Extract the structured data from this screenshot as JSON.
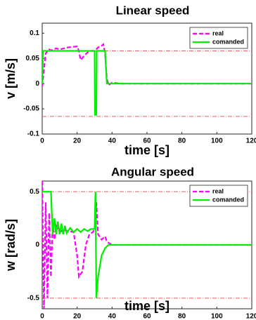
{
  "chart_data": [
    {
      "type": "line",
      "title": "Linear speed",
      "x_label": "time [s]",
      "y_label": "v [m/s]",
      "xlim": [
        0,
        120
      ],
      "xticks": [
        0,
        20,
        40,
        60,
        80,
        100,
        120
      ],
      "ylim": [
        -0.1,
        0.12
      ],
      "yticks": [
        -0.1,
        -0.05,
        0,
        0.05,
        0.1
      ],
      "hlines": [
        0.065,
        -0.065
      ],
      "hline_color": "#e06060",
      "legend": "upper right",
      "series": [
        {
          "name": "real",
          "color": "#ff00ff",
          "dash": true,
          "x": [
            0,
            2,
            4,
            5,
            8,
            10,
            15,
            20,
            21,
            22,
            24,
            26,
            28,
            30,
            31,
            32,
            34,
            35,
            36,
            37,
            38,
            40,
            45,
            120
          ],
          "values": [
            -0.005,
            0.06,
            0.068,
            0.066,
            0.07,
            0.068,
            0.072,
            0.074,
            0.065,
            0.047,
            0.055,
            0.062,
            0.065,
            0.065,
            0.068,
            0.072,
            0.075,
            0.078,
            0.06,
            0.01,
            -0.003,
            0.002,
            0,
            0
          ]
        },
        {
          "name": "comanded",
          "color": "#00ee00",
          "dash": false,
          "x": [
            0,
            0.5,
            30,
            30.2,
            31,
            31.2,
            36,
            37,
            120
          ],
          "values": [
            0,
            0.065,
            0.065,
            -0.062,
            -0.062,
            0.065,
            0.065,
            0,
            0
          ]
        }
      ]
    },
    {
      "type": "line",
      "title": "Angular speed",
      "x_label": "time [s]",
      "y_label": "w [rad/s]",
      "xlim": [
        0,
        120
      ],
      "xticks": [
        0,
        20,
        40,
        60,
        80,
        100,
        120
      ],
      "ylim": [
        -0.6,
        0.6
      ],
      "yticks": [
        -0.5,
        0,
        0.5
      ],
      "hlines": [
        0.5,
        -0.5
      ],
      "hline_color": "#e06060",
      "legend": "upper right",
      "series": [
        {
          "name": "real",
          "color": "#ff00ff",
          "dash": true,
          "x": [
            0,
            1,
            2,
            3,
            4,
            5,
            6,
            7,
            8,
            10,
            12,
            15,
            18,
            20,
            21,
            23,
            25,
            27,
            29,
            30,
            31,
            32,
            34,
            36,
            37,
            40,
            120
          ],
          "values": [
            0.6,
            -0.6,
            0.4,
            -0.5,
            0.3,
            -0.3,
            0.2,
            0.05,
            0.18,
            0.12,
            0.14,
            0.13,
            0.12,
            -0.1,
            -0.3,
            -0.25,
            0,
            0.1,
            0.12,
            0.15,
            0.4,
            0.1,
            0.05,
            0.08,
            0.03,
            0,
            0
          ]
        },
        {
          "name": "comanded",
          "color": "#00ee00",
          "dash": false,
          "x": [
            0,
            5,
            6,
            7,
            8,
            9,
            10,
            11,
            12,
            13,
            14,
            16,
            18,
            20,
            22,
            24,
            26,
            28,
            30,
            30.5,
            31,
            32,
            34,
            36,
            38,
            120
          ],
          "values": [
            0.5,
            0.5,
            0.1,
            0.25,
            0.1,
            0.22,
            0.1,
            0.2,
            0.1,
            0.18,
            0.11,
            0.16,
            0.12,
            0.15,
            0.12,
            0.15,
            0.13,
            0.15,
            0.15,
            0.5,
            -0.5,
            -0.3,
            -0.1,
            -0.03,
            0,
            0
          ]
        }
      ]
    }
  ]
}
